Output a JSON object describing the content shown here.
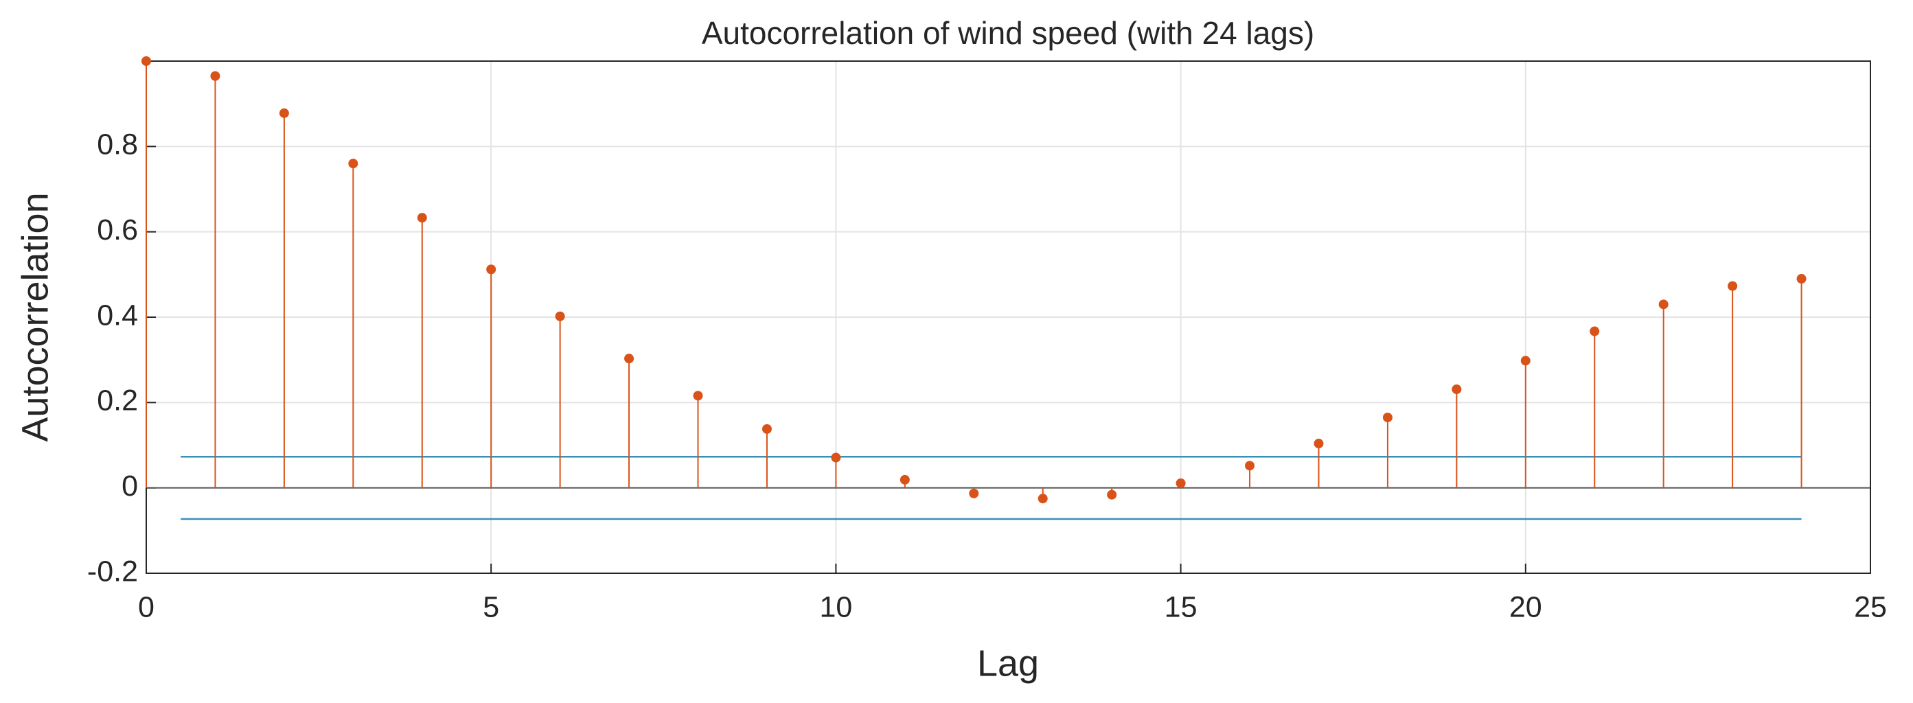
{
  "chart_data": {
    "type": "stem",
    "title": "Autocorrelation of wind speed (with 24 lags)",
    "xlabel": "Lag",
    "ylabel": "Autocorrelation",
    "x": [
      0,
      1,
      2,
      3,
      4,
      5,
      6,
      7,
      8,
      9,
      10,
      11,
      12,
      13,
      14,
      15,
      16,
      17,
      18,
      19,
      20,
      21,
      22,
      23,
      24
    ],
    "values": [
      1.0,
      0.965,
      0.878,
      0.76,
      0.633,
      0.512,
      0.402,
      0.303,
      0.216,
      0.138,
      0.071,
      0.019,
      -0.013,
      -0.025,
      -0.016,
      0.011,
      0.052,
      0.104,
      0.165,
      0.231,
      0.298,
      0.367,
      0.43,
      0.473,
      0.49
    ],
    "color": "#D95319",
    "confidence_bounds": {
      "x": [
        0.5,
        24
      ],
      "upper": 0.073,
      "lower": -0.073,
      "color": "#3A8FB7"
    },
    "xlim": [
      0,
      25
    ],
    "xticks": [
      0,
      5,
      10,
      15,
      20,
      25
    ],
    "ylim": [
      -0.2,
      1
    ],
    "yticks": [
      -0.2,
      0,
      0.2,
      0.4,
      0.6,
      0.8
    ],
    "grid": true
  }
}
